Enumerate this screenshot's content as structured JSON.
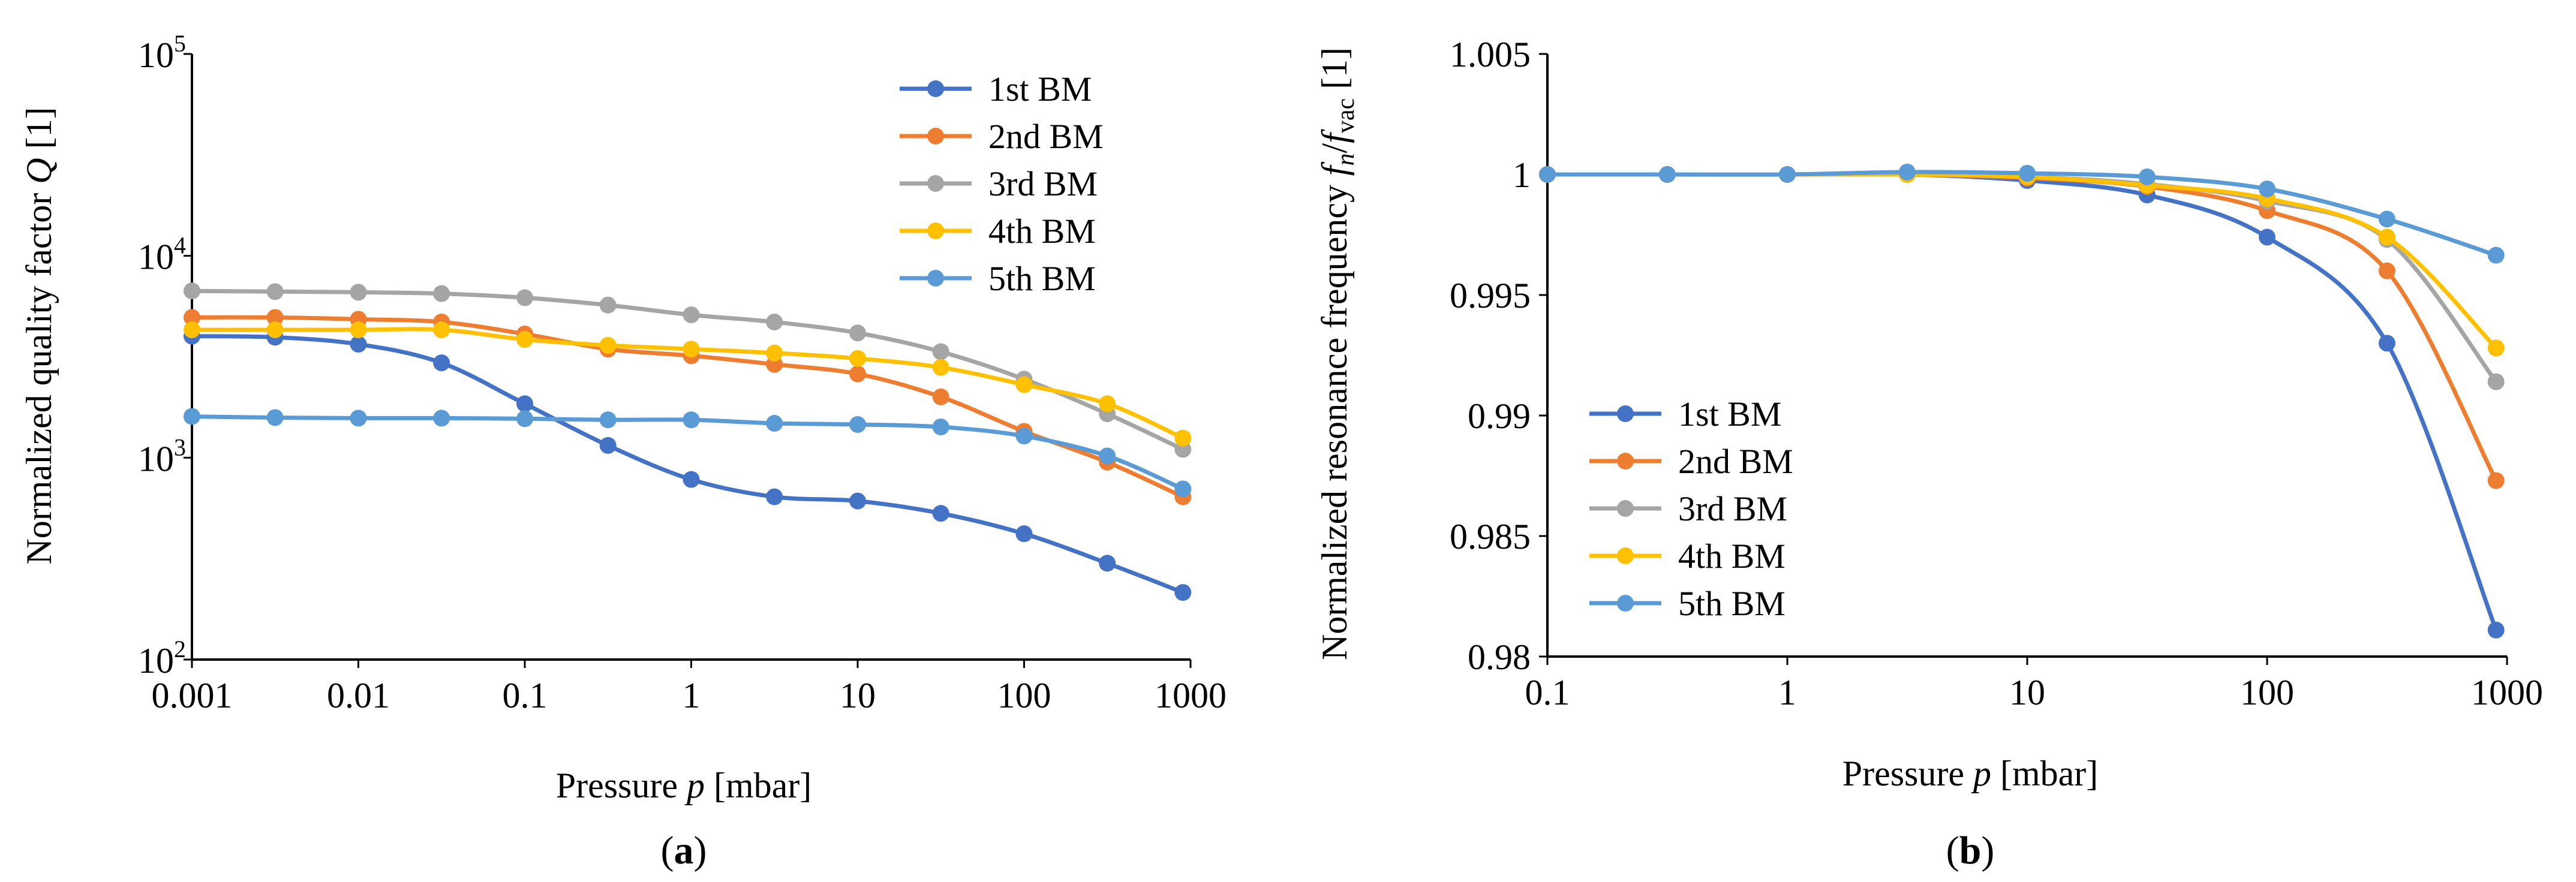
{
  "colors": {
    "series": [
      "#4472C4",
      "#ED7D31",
      "#A5A5A5",
      "#FFC000",
      "#5B9BD5"
    ]
  },
  "chart_data": [
    {
      "panel": "a",
      "type": "line",
      "xscale": "log",
      "yscale": "log",
      "xlim": [
        0.001,
        1000
      ],
      "ylim": [
        100,
        100000
      ],
      "xlabel_pre": "Pressure ",
      "xlabel_var": "p",
      "xlabel_post": " [mbar]",
      "ylabel_pre": "Normalized quality factor ",
      "ylabel_var": "Q",
      "ylabel_post": " [1]",
      "xticks": [
        "0.001",
        "0.01",
        "0.1",
        "1",
        "10",
        "100",
        "1000"
      ],
      "yticks": [
        {
          "base": "10",
          "exp": "2"
        },
        {
          "base": "10",
          "exp": "3"
        },
        {
          "base": "10",
          "exp": "4"
        },
        {
          "base": "10",
          "exp": "5"
        }
      ],
      "legend_position": "top-right",
      "caption": "a",
      "x": [
        0.001,
        0.00316,
        0.01,
        0.0316,
        0.1,
        0.316,
        1,
        3.16,
        10,
        31.6,
        100,
        316,
        900
      ],
      "series": [
        {
          "name": "1st BM",
          "values": [
            4000,
            3950,
            3650,
            2950,
            1850,
            1150,
            780,
            640,
            610,
            530,
            420,
            300,
            215
          ]
        },
        {
          "name": "2nd BM",
          "values": [
            4950,
            4950,
            4850,
            4700,
            4100,
            3450,
            3200,
            2900,
            2600,
            2000,
            1350,
            950,
            640
          ]
        },
        {
          "name": "3rd BM",
          "values": [
            6700,
            6650,
            6600,
            6500,
            6200,
            5700,
            5100,
            4700,
            4150,
            3350,
            2450,
            1650,
            1100
          ]
        },
        {
          "name": "4th BM",
          "values": [
            4300,
            4300,
            4300,
            4300,
            3850,
            3600,
            3450,
            3300,
            3100,
            2800,
            2300,
            1850,
            1250
          ]
        },
        {
          "name": "5th BM",
          "values": [
            1600,
            1580,
            1570,
            1570,
            1560,
            1540,
            1540,
            1480,
            1460,
            1420,
            1280,
            1020,
            700
          ]
        }
      ]
    },
    {
      "panel": "b",
      "type": "line",
      "xscale": "log",
      "yscale": "linear",
      "xlim": [
        0.1,
        1000
      ],
      "ylim": [
        0.98,
        1.005
      ],
      "xlabel_pre": "Pressure ",
      "xlabel_var": "p",
      "xlabel_post": " [mbar]",
      "ylabel_pre": "Normalized resonance frequency ",
      "ylabel_var": "f",
      "ylabel_sub1": "n",
      "ylabel_slash": "/",
      "ylabel_var2": "f",
      "ylabel_sub2": "vac",
      "ylabel_post": " [1]",
      "xticks": [
        "0.1",
        "1",
        "10",
        "100",
        "1000"
      ],
      "yticks": [
        "0.98",
        "0.985",
        "0.99",
        "0.995",
        "1",
        "1.005"
      ],
      "legend_position": "lower-left",
      "caption": "b",
      "x": [
        0.1,
        0.316,
        1,
        3.16,
        10,
        31.6,
        100,
        316,
        900
      ],
      "series": [
        {
          "name": "1st BM",
          "values": [
            1.0,
            1.0,
            1.0,
            1.0,
            0.99975,
            0.99915,
            0.9974,
            0.993,
            0.9811
          ]
        },
        {
          "name": "2nd BM",
          "values": [
            1.0,
            1.0,
            1.0,
            1.0,
            0.99985,
            0.9995,
            0.9985,
            0.996,
            0.9873
          ]
        },
        {
          "name": "3rd BM",
          "values": [
            1.0,
            1.0,
            1.0,
            1.0,
            0.9999,
            0.9996,
            0.9989,
            0.9973,
            0.9914
          ]
        },
        {
          "name": "4th BM",
          "values": [
            1.0,
            1.0,
            1.0,
            1.0,
            0.9999,
            0.99955,
            0.999,
            0.9974,
            0.9928
          ]
        },
        {
          "name": "5th BM",
          "values": [
            1.0,
            1.0,
            1.0,
            1.0001,
            1.00005,
            0.9999,
            0.9994,
            0.99815,
            0.99665
          ]
        }
      ]
    }
  ]
}
